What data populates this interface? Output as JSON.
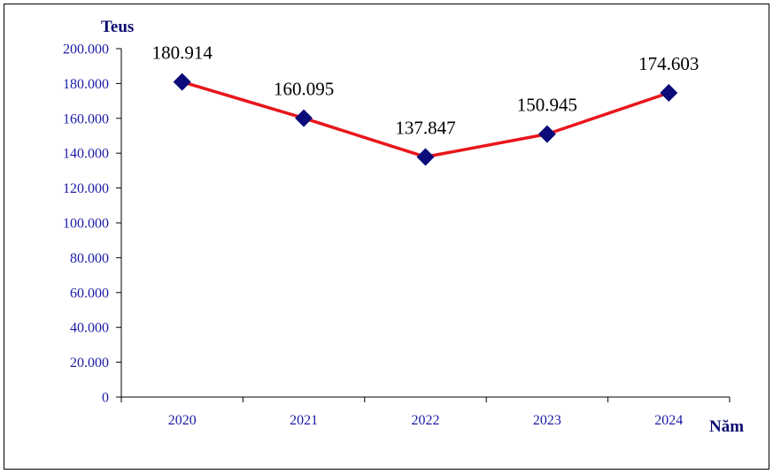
{
  "chart_data": {
    "type": "line",
    "title": "",
    "ylabel": "Teus",
    "xlabel": "Năm",
    "categories": [
      "2020",
      "2021",
      "2022",
      "2023",
      "2024"
    ],
    "values": [
      180914,
      160095,
      137847,
      150945,
      174603
    ],
    "value_labels": [
      "180.914",
      "160.095",
      "137.847",
      "150.945",
      "174.603"
    ],
    "y_ticks": [
      0,
      20000,
      40000,
      60000,
      80000,
      100000,
      120000,
      140000,
      160000,
      180000,
      200000
    ],
    "y_tick_labels": [
      "0",
      "20.000",
      "40.000",
      "60.000",
      "80.000",
      "100.000",
      "120.000",
      "140.000",
      "160.000",
      "180.000",
      "200.000"
    ],
    "ylim": [
      0,
      200000
    ],
    "grid": false,
    "legend": "none",
    "colors": {
      "line": "#e8161b",
      "marker": "#0b0b7a",
      "axis": "#000000",
      "tick_text": "#1a1aa6",
      "axis_title": "#0a0a6e",
      "frame": "#000000"
    }
  }
}
